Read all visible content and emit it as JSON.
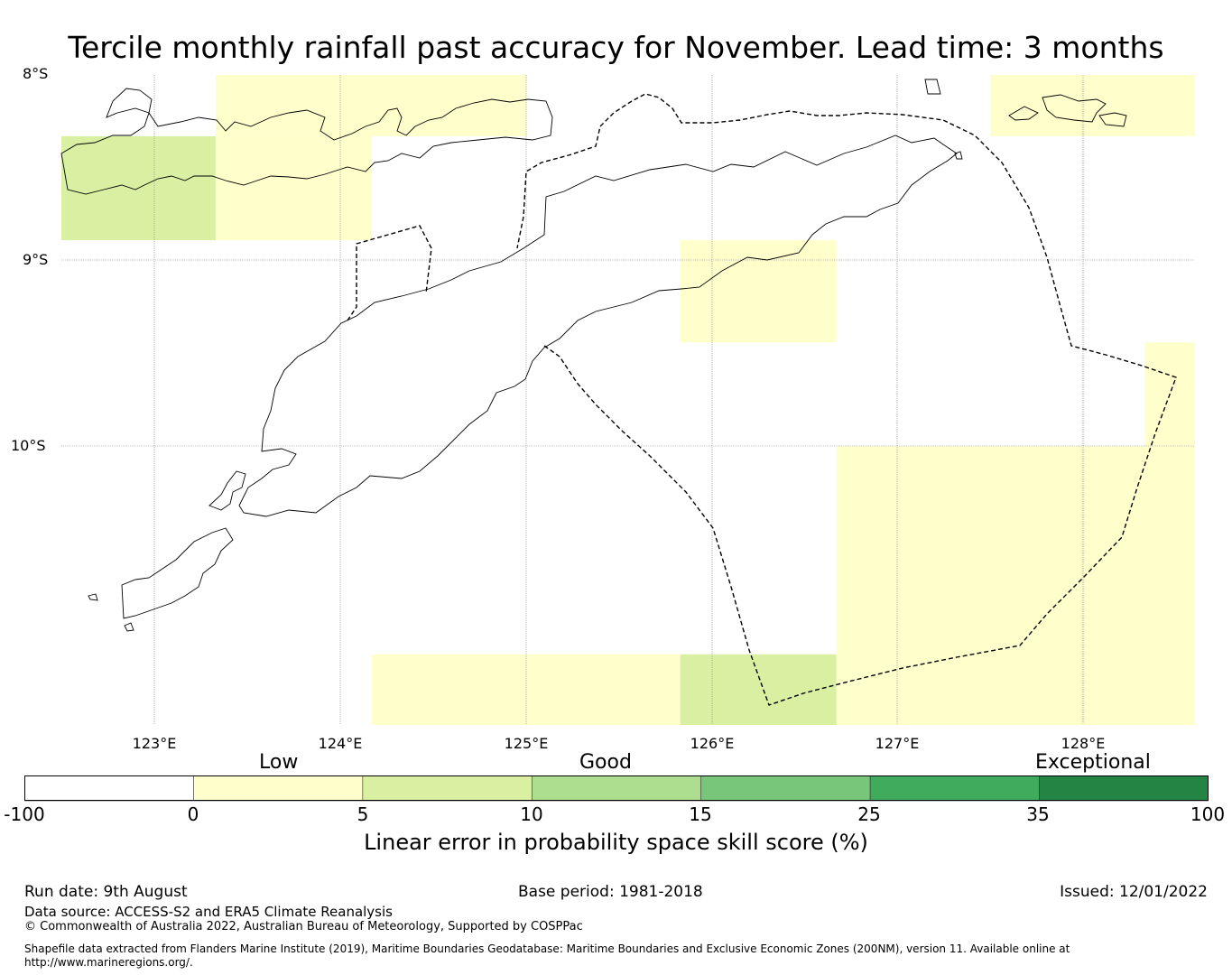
{
  "title": "Tercile monthly rainfall past accuracy for November. Lead time: 3 months",
  "map": {
    "lat_labels": [
      "8°S",
      "9°S",
      "10°S"
    ],
    "lon_labels": [
      "123°E",
      "124°E",
      "125°E",
      "126°E",
      "127°E",
      "128°E"
    ],
    "extent": {
      "lon_min": 122.5,
      "lon_max": 128.6,
      "lat_top": -8.0,
      "lat_bottom": -11.5
    },
    "grid": true,
    "cells": [
      {
        "lon": [
          123.33,
          124.17
        ],
        "lat": [
          -8.0,
          -8.33
        ],
        "category": "0-5"
      },
      {
        "lon": [
          124.17,
          125.0
        ],
        "lat": [
          -8.0,
          -8.33
        ],
        "category": "0-5"
      },
      {
        "lon": [
          122.5,
          123.33
        ],
        "lat": [
          -8.33,
          -8.89
        ],
        "category": "5-10"
      },
      {
        "lon": [
          123.33,
          124.17
        ],
        "lat": [
          -8.33,
          -8.89
        ],
        "category": "0-5"
      },
      {
        "lon": [
          127.5,
          128.6
        ],
        "lat": [
          -8.0,
          -8.33
        ],
        "category": "0-5"
      },
      {
        "lon": [
          125.83,
          126.67
        ],
        "lat": [
          -8.89,
          -9.44
        ],
        "category": "0-5"
      },
      {
        "lon": [
          128.33,
          128.6
        ],
        "lat": [
          -9.44,
          -10.0
        ],
        "category": "0-5"
      },
      {
        "lon": [
          126.67,
          128.6
        ],
        "lat": [
          -10.0,
          -11.5
        ],
        "category": "0-5"
      },
      {
        "lon": [
          124.17,
          125.83
        ],
        "lat": [
          -11.12,
          -11.5
        ],
        "category": "0-5"
      },
      {
        "lon": [
          125.83,
          126.67
        ],
        "lat": [
          -11.12,
          -11.5
        ],
        "category": "5-10"
      }
    ]
  },
  "colorbar": {
    "group_labels": [
      "Low",
      "Good",
      "Exceptional"
    ],
    "ticks": [
      "-100",
      "0",
      "5",
      "10",
      "15",
      "25",
      "35",
      "100"
    ],
    "colors": [
      "#ffffff",
      "#ffffcc",
      "#d9f0a3",
      "#addd8e",
      "#78c679",
      "#41ab5d",
      "#238443"
    ],
    "title": "Linear error in probability space skill score (%)"
  },
  "footer": {
    "run_date": "Run date: 9th August",
    "base_period": "Base period: 1981-2018",
    "issued": "Issued: 12/01/2022",
    "data_source": "Data source: ACCESS-S2 and ERA5 Climate Reanalysis",
    "copyright": "© Commonwealth of Australia 2022, Australian Bureau of Meteorology, Supported by COSPPac",
    "shapefile_line1": "Shapefile data extracted from Flanders Marine Institute (2019), Maritime Boundaries Geodatabase: Maritime Boundaries and Exclusive Economic Zones (200NM), version 11. Available online at",
    "shapefile_line2": "http://www.marineregions.org/."
  }
}
